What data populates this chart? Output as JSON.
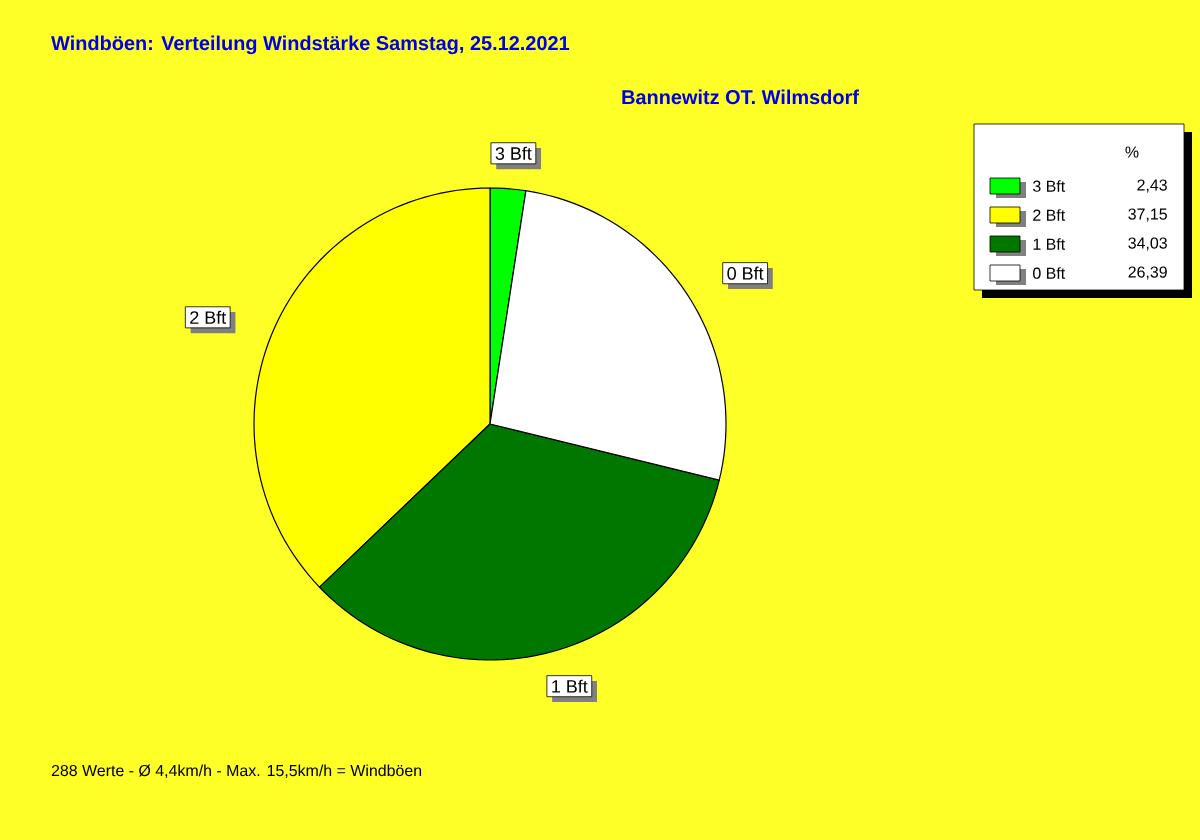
{
  "chart_data": {
    "type": "pie",
    "title": "Windböen: Verteilung Windstärke  Samstag, 25.12.2021",
    "subtitle": "Bannewitz OT. Wilmsdorf",
    "categories": [
      "3 Bft",
      "2 Bft",
      "1 Bft",
      "0 Bft"
    ],
    "values": [
      2.43,
      37.15,
      34.03,
      26.39
    ],
    "colors": [
      "#00ff00",
      "#ffff00",
      "#007800",
      "#ffffff"
    ],
    "value_labels": [
      "2,43",
      "37,15",
      "34,03",
      "26,39"
    ],
    "legend": "top right",
    "legend_title": "%",
    "annotations": [
      "288 Werte   -   Ø 4,4km/h  -  Max. 15,5km/h = Windböen"
    ]
  }
}
